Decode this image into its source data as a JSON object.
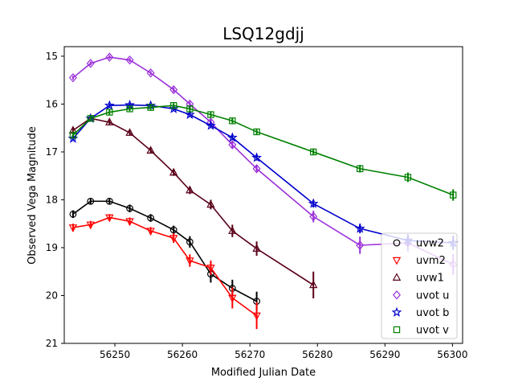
{
  "chart_data": {
    "type": "scatter",
    "title": "LSQ12gdjj",
    "xlabel": "Modified Julian Date",
    "ylabel": "Observed Vega Magnitude",
    "xlim": [
      56242.5,
      56301.5
    ],
    "ylim": [
      21,
      14.8
    ],
    "y_inverted": true,
    "x_ticks": [
      56250,
      56260,
      56270,
      56280,
      56290,
      56300
    ],
    "y_ticks": [
      15,
      16,
      17,
      18,
      19,
      20,
      21
    ],
    "grid": false,
    "legend_position": "bottom-right",
    "series": [
      {
        "name": "uvw2",
        "color": "#000000",
        "marker": "circle",
        "x": [
          56243.8,
          56246.4,
          56249.2,
          56252.2,
          56255.3,
          56258.7,
          56261.1,
          56264.2,
          56267.4,
          56271.0
        ],
        "y": [
          18.3,
          18.03,
          18.03,
          18.18,
          18.38,
          18.63,
          18.88,
          19.55,
          19.85,
          20.12
        ],
        "yerr": [
          0.08,
          0.07,
          0.07,
          0.08,
          0.08,
          0.09,
          0.12,
          0.18,
          0.18,
          0.2
        ]
      },
      {
        "name": "uvm2",
        "color": "#ff0000",
        "marker": "triangle-down",
        "x": [
          56243.8,
          56246.4,
          56249.2,
          56252.2,
          56255.3,
          56258.7,
          56261.1,
          56264.2,
          56267.4,
          56271.0
        ],
        "y": [
          18.58,
          18.52,
          18.37,
          18.45,
          18.65,
          18.8,
          19.27,
          19.42,
          20.05,
          20.42
        ],
        "yerr": [
          0.08,
          0.08,
          0.07,
          0.08,
          0.08,
          0.1,
          0.13,
          0.15,
          0.22,
          0.28
        ]
      },
      {
        "name": "uvw1",
        "color": "#5a0018",
        "marker": "triangle-up",
        "x": [
          56243.8,
          56246.4,
          56249.2,
          56252.2,
          56255.3,
          56258.7,
          56261.1,
          56264.2,
          56267.4,
          56271.0,
          56279.4
        ],
        "y": [
          16.55,
          16.3,
          16.38,
          16.6,
          16.97,
          17.43,
          17.8,
          18.1,
          18.65,
          19.02,
          19.78
        ],
        "yerr": [
          0.05,
          0.05,
          0.05,
          0.05,
          0.06,
          0.07,
          0.08,
          0.1,
          0.13,
          0.15,
          0.28
        ]
      },
      {
        "name": "uvot u",
        "color": "#9b30d9",
        "marker": "diamond",
        "x": [
          56243.8,
          56246.4,
          56249.2,
          56252.2,
          56255.3,
          56258.7,
          56261.1,
          56264.2,
          56267.4,
          56271.0,
          56279.4,
          56286.3,
          56293.4,
          56300.1
        ],
        "y": [
          15.45,
          15.15,
          15.02,
          15.08,
          15.35,
          15.7,
          16.0,
          16.38,
          16.85,
          17.35,
          18.35,
          18.95,
          18.9,
          19.35
        ],
        "yerr": [
          0.04,
          0.04,
          0.04,
          0.04,
          0.04,
          0.05,
          0.05,
          0.06,
          0.07,
          0.08,
          0.12,
          0.18,
          0.18,
          0.22
        ]
      },
      {
        "name": "uvot b",
        "color": "#0000cc",
        "marker": "star",
        "x": [
          56243.8,
          56246.4,
          56249.2,
          56252.2,
          56255.3,
          56258.7,
          56261.1,
          56264.2,
          56267.4,
          56271.0,
          56279.4,
          56286.3,
          56293.4,
          56300.1
        ],
        "y": [
          16.72,
          16.3,
          16.03,
          16.02,
          16.03,
          16.1,
          16.22,
          16.45,
          16.7,
          17.12,
          18.08,
          18.6,
          18.85,
          18.9
        ],
        "yerr": [
          0.04,
          0.04,
          0.04,
          0.04,
          0.04,
          0.04,
          0.04,
          0.05,
          0.05,
          0.06,
          0.08,
          0.1,
          0.12,
          0.15
        ]
      },
      {
        "name": "uvot v",
        "color": "#008000",
        "marker": "square",
        "x": [
          56243.8,
          56246.4,
          56249.2,
          56252.2,
          56255.3,
          56258.7,
          56261.1,
          56264.2,
          56267.4,
          56271.0,
          56279.4,
          56286.3,
          56293.4,
          56300.1
        ],
        "y": [
          16.65,
          16.3,
          16.17,
          16.1,
          16.07,
          16.03,
          16.1,
          16.22,
          16.35,
          16.58,
          17.0,
          17.35,
          17.53,
          17.9
        ],
        "yerr": [
          0.05,
          0.05,
          0.05,
          0.05,
          0.05,
          0.05,
          0.05,
          0.05,
          0.06,
          0.06,
          0.07,
          0.08,
          0.1,
          0.12
        ]
      }
    ]
  }
}
